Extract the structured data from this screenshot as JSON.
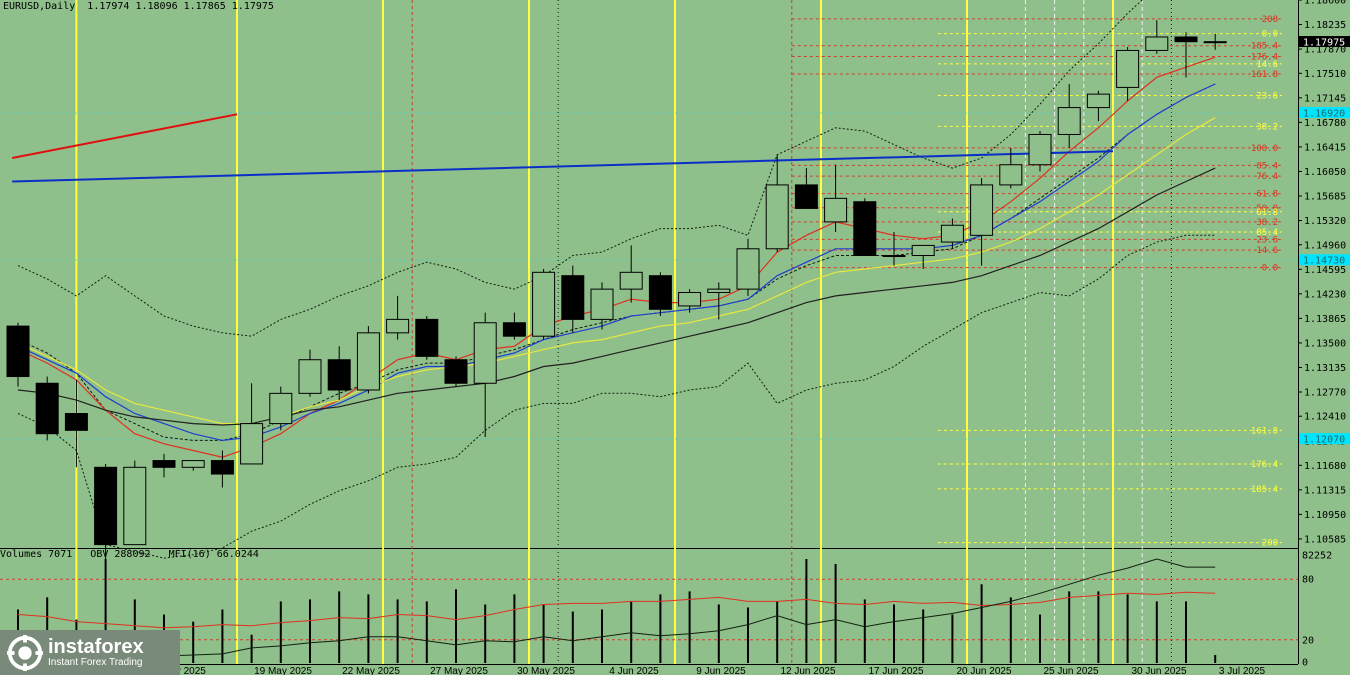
{
  "header": {
    "symbol": "EURUSD,Daily",
    "ohlc": "1.17974 1.18096 1.17865 1.17975"
  },
  "subwindow": {
    "header": "Volumes 7071   OBV 288092   MFI(16) 66.0244",
    "scale_labels": [
      "82252",
      "80",
      "20",
      "0"
    ]
  },
  "logo": {
    "name": "instaforex",
    "tagline": "Instant Forex Trading"
  },
  "colors": {
    "background": "#8fbf8a",
    "bull_candle": "#8fbf8a",
    "bear_candle": "#000000",
    "ma_red": "#e03020",
    "ma_blue": "#1f3fd0",
    "ma_yellow": "#e8e840",
    "ma_black": "#202020",
    "trend_red": "#e01010",
    "trend_blue": "#0a2ec8",
    "highlight": "#00e5ff"
  },
  "chart_data": {
    "type": "candlestick",
    "ylim": [
      1.1045,
      1.186
    ],
    "price_ticks": [
      "1.18600",
      "1.18235",
      "1.17870",
      "1.17510",
      "1.17145",
      "1.16780",
      "1.16415",
      "1.16050",
      "1.15685",
      "1.15320",
      "1.14960",
      "1.14595",
      "1.14230",
      "1.13865",
      "1.13500",
      "1.13135",
      "1.12770",
      "1.12410",
      "1.12045",
      "1.11680",
      "1.11315",
      "1.10950",
      "1.10585"
    ],
    "current_price": "1.17975",
    "cyan_marks": [
      {
        "price": 1.1692,
        "text": "1.16920"
      },
      {
        "price": 1.1473,
        "text": "1.14730"
      },
      {
        "price": 1.1207,
        "text": "1.12070"
      }
    ],
    "dates": [
      "19 May 2025",
      "22 May 2025",
      "27 May 2025",
      "30 May 2025",
      "4 Jun 2025",
      "9 Jun 2025",
      "12 Jun 2025",
      "17 Jun 2025",
      "20 Jun 2025",
      "25 Jun 2025",
      "30 Jun 2025",
      "3 Jul 2025"
    ],
    "partial_dates": [
      "May 2025",
      "14 May 2025"
    ],
    "candles": [
      {
        "o": 1.1375,
        "h": 1.138,
        "l": 1.1285,
        "c": 1.13
      },
      {
        "o": 1.129,
        "h": 1.13,
        "l": 1.1205,
        "c": 1.1215
      },
      {
        "o": 1.1245,
        "h": 1.1295,
        "l": 1.1165,
        "c": 1.122
      },
      {
        "o": 1.1165,
        "h": 1.117,
        "l": 1.101,
        "c": 1.105
      },
      {
        "o": 1.105,
        "h": 1.1175,
        "l": 1.105,
        "c": 1.1165
      },
      {
        "o": 1.1175,
        "h": 1.1185,
        "l": 1.115,
        "c": 1.1165
      },
      {
        "o": 1.1165,
        "h": 1.1175,
        "l": 1.116,
        "c": 1.1175
      },
      {
        "o": 1.1175,
        "h": 1.119,
        "l": 1.1135,
        "c": 1.1155
      },
      {
        "o": 1.117,
        "h": 1.129,
        "l": 1.117,
        "c": 1.123
      },
      {
        "o": 1.123,
        "h": 1.1285,
        "l": 1.122,
        "c": 1.1275
      },
      {
        "o": 1.1275,
        "h": 1.134,
        "l": 1.127,
        "c": 1.1325
      },
      {
        "o": 1.1325,
        "h": 1.1345,
        "l": 1.1265,
        "c": 1.128
      },
      {
        "o": 1.128,
        "h": 1.1375,
        "l": 1.1275,
        "c": 1.1365
      },
      {
        "o": 1.1365,
        "h": 1.142,
        "l": 1.1355,
        "c": 1.1385
      },
      {
        "o": 1.1385,
        "h": 1.139,
        "l": 1.1325,
        "c": 1.133
      },
      {
        "o": 1.1325,
        "h": 1.133,
        "l": 1.1285,
        "c": 1.129
      },
      {
        "o": 1.129,
        "h": 1.1395,
        "l": 1.121,
        "c": 1.138
      },
      {
        "o": 1.138,
        "h": 1.1395,
        "l": 1.1355,
        "c": 1.136
      },
      {
        "o": 1.136,
        "h": 1.146,
        "l": 1.1355,
        "c": 1.1455
      },
      {
        "o": 1.145,
        "h": 1.1465,
        "l": 1.1365,
        "c": 1.1385
      },
      {
        "o": 1.1385,
        "h": 1.144,
        "l": 1.137,
        "c": 1.143
      },
      {
        "o": 1.143,
        "h": 1.1495,
        "l": 1.141,
        "c": 1.1455
      },
      {
        "o": 1.145,
        "h": 1.1455,
        "l": 1.139,
        "c": 1.14
      },
      {
        "o": 1.1405,
        "h": 1.143,
        "l": 1.1395,
        "c": 1.1425
      },
      {
        "o": 1.1425,
        "h": 1.144,
        "l": 1.1385,
        "c": 1.143
      },
      {
        "o": 1.143,
        "h": 1.1505,
        "l": 1.142,
        "c": 1.149
      },
      {
        "o": 1.149,
        "h": 1.163,
        "l": 1.1485,
        "c": 1.1585
      },
      {
        "o": 1.1585,
        "h": 1.161,
        "l": 1.155,
        "c": 1.155
      },
      {
        "o": 1.153,
        "h": 1.1615,
        "l": 1.1515,
        "c": 1.1565
      },
      {
        "o": 1.156,
        "h": 1.1565,
        "l": 1.148,
        "c": 1.148
      },
      {
        "o": 1.148,
        "h": 1.1515,
        "l": 1.1465,
        "c": 1.148
      },
      {
        "o": 1.148,
        "h": 1.1495,
        "l": 1.146,
        "c": 1.1495
      },
      {
        "o": 1.15,
        "h": 1.1535,
        "l": 1.149,
        "c": 1.1525
      },
      {
        "o": 1.151,
        "h": 1.1595,
        "l": 1.1465,
        "c": 1.1585
      },
      {
        "o": 1.1585,
        "h": 1.164,
        "l": 1.158,
        "c": 1.1615
      },
      {
        "o": 1.1615,
        "h": 1.1665,
        "l": 1.1605,
        "c": 1.166
      },
      {
        "o": 1.166,
        "h": 1.1735,
        "l": 1.164,
        "c": 1.17
      },
      {
        "o": 1.17,
        "h": 1.1725,
        "l": 1.168,
        "c": 1.172
      },
      {
        "o": 1.173,
        "h": 1.179,
        "l": 1.171,
        "c": 1.1785
      },
      {
        "o": 1.1785,
        "h": 1.183,
        "l": 1.178,
        "c": 1.1805
      },
      {
        "o": 1.1805,
        "h": 1.1812,
        "l": 1.1745,
        "c": 1.1798
      },
      {
        "o": 1.1797,
        "h": 1.181,
        "l": 1.1786,
        "c": 1.1798
      }
    ],
    "moving_averages": [
      {
        "name": "red",
        "values": [
          1.134,
          1.132,
          1.1295,
          1.125,
          1.1215,
          1.12,
          1.119,
          1.118,
          1.1195,
          1.1215,
          1.1245,
          1.1265,
          1.1295,
          1.1325,
          1.1335,
          1.1325,
          1.134,
          1.1345,
          1.1375,
          1.139,
          1.14,
          1.1415,
          1.141,
          1.141,
          1.1415,
          1.1435,
          1.1485,
          1.151,
          1.153,
          1.152,
          1.151,
          1.1505,
          1.151,
          1.153,
          1.156,
          1.1595,
          1.1635,
          1.167,
          1.171,
          1.1745,
          1.176,
          1.1775
        ]
      },
      {
        "name": "blue",
        "values": [
          1.1345,
          1.1325,
          1.1305,
          1.127,
          1.1245,
          1.123,
          1.1215,
          1.1205,
          1.121,
          1.1225,
          1.1245,
          1.126,
          1.128,
          1.1305,
          1.1315,
          1.1315,
          1.1325,
          1.1335,
          1.1355,
          1.1365,
          1.1375,
          1.139,
          1.1395,
          1.14,
          1.1405,
          1.1415,
          1.145,
          1.147,
          1.149,
          1.149,
          1.149,
          1.149,
          1.1495,
          1.151,
          1.1535,
          1.156,
          1.159,
          1.162,
          1.166,
          1.169,
          1.1715,
          1.1735
        ]
      },
      {
        "name": "yellow",
        "values": [
          1.135,
          1.133,
          1.131,
          1.128,
          1.126,
          1.125,
          1.124,
          1.123,
          1.123,
          1.124,
          1.1255,
          1.1265,
          1.1285,
          1.13,
          1.131,
          1.1315,
          1.132,
          1.133,
          1.134,
          1.135,
          1.1355,
          1.1365,
          1.1375,
          1.138,
          1.139,
          1.14,
          1.142,
          1.144,
          1.1455,
          1.146,
          1.1465,
          1.147,
          1.1475,
          1.1485,
          1.15,
          1.152,
          1.1545,
          1.157,
          1.16,
          1.163,
          1.166,
          1.1685
        ]
      },
      {
        "name": "black",
        "values": [
          1.128,
          1.1275,
          1.1265,
          1.125,
          1.124,
          1.1235,
          1.123,
          1.1228,
          1.123,
          1.124,
          1.125,
          1.1255,
          1.1265,
          1.1275,
          1.128,
          1.1285,
          1.129,
          1.13,
          1.1315,
          1.132,
          1.133,
          1.134,
          1.135,
          1.136,
          1.137,
          1.138,
          1.1395,
          1.141,
          1.142,
          1.1425,
          1.143,
          1.1435,
          1.144,
          1.145,
          1.1465,
          1.148,
          1.15,
          1.152,
          1.1545,
          1.157,
          1.159,
          1.161
        ]
      }
    ],
    "bollinger_upper": [
      1.1465,
      1.1445,
      1.142,
      1.145,
      1.142,
      1.139,
      1.1375,
      1.1365,
      1.136,
      1.1385,
      1.14,
      1.142,
      1.1435,
      1.1455,
      1.147,
      1.146,
      1.144,
      1.143,
      1.145,
      1.148,
      1.1485,
      1.1505,
      1.152,
      1.152,
      1.1525,
      1.151,
      1.163,
      1.165,
      1.167,
      1.1665,
      1.1645,
      1.1625,
      1.161,
      1.1625,
      1.166,
      1.1705,
      1.1755,
      1.1795,
      1.184,
      1.188,
      1.192,
      1.196
    ],
    "bollinger_mid": [
      1.1355,
      1.1335,
      1.1305,
      1.125,
      1.123,
      1.121,
      1.1205,
      1.1205,
      1.1215,
      1.1235,
      1.1255,
      1.1275,
      1.129,
      1.131,
      1.132,
      1.132,
      1.133,
      1.134,
      1.1355,
      1.137,
      1.138,
      1.139,
      1.1395,
      1.14,
      1.1405,
      1.1415,
      1.1445,
      1.1465,
      1.148,
      1.148,
      1.148,
      1.1485,
      1.149,
      1.151,
      1.1535,
      1.1565,
      1.1595,
      1.1625,
      1.166,
      1.169,
      1.1715,
      1.1735
    ],
    "bollinger_lower": [
      1.1245,
      1.1225,
      1.119,
      1.105,
      1.104,
      1.103,
      1.1035,
      1.1045,
      1.107,
      1.1085,
      1.111,
      1.113,
      1.1145,
      1.1165,
      1.117,
      1.118,
      1.122,
      1.125,
      1.126,
      1.126,
      1.1275,
      1.1275,
      1.127,
      1.128,
      1.1285,
      1.132,
      1.126,
      1.128,
      1.129,
      1.1295,
      1.1315,
      1.1345,
      1.137,
      1.1395,
      1.141,
      1.1425,
      1.142,
      1.1445,
      1.148,
      1.15,
      1.151,
      1.151
    ],
    "vertical_lines": [
      {
        "bar": 2.0,
        "style": "yellow"
      },
      {
        "bar": 7.5,
        "style": "yellow"
      },
      {
        "bar": 12.5,
        "style": "yellow"
      },
      {
        "bar": 13.5,
        "style": "red-dashed"
      },
      {
        "bar": 17.5,
        "style": "yellow"
      },
      {
        "bar": 18.5,
        "style": "black-dotted"
      },
      {
        "bar": 22.5,
        "style": "yellow"
      },
      {
        "bar": 26.5,
        "style": "red-dashed"
      },
      {
        "bar": 27.5,
        "style": "yellow"
      },
      {
        "bar": 32.5,
        "style": "yellow"
      },
      {
        "bar": 34.5,
        "style": "white-dashed"
      },
      {
        "bar": 35.5,
        "style": "white-dashed"
      },
      {
        "bar": 36.5,
        "style": "white-dashed"
      },
      {
        "bar": 37.5,
        "style": "yellow"
      },
      {
        "bar": 38.5,
        "style": "white-dashed"
      },
      {
        "bar": 39.5,
        "style": "black-dotted"
      }
    ],
    "fib_levels_red": [
      {
        "label": "208",
        "price": 1.1832
      },
      {
        "label": "185.4",
        "price": 1.1792
      },
      {
        "label": "176.4",
        "price": 1.1776
      },
      {
        "label": "161.8",
        "price": 1.175
      },
      {
        "label": "100.0",
        "price": 1.164
      },
      {
        "label": "85.4",
        "price": 1.1614
      },
      {
        "label": "76.4",
        "price": 1.1598
      },
      {
        "label": "61.8",
        "price": 1.1572
      },
      {
        "label": "50.0",
        "price": 1.1551
      },
      {
        "label": "38.2",
        "price": 1.153
      },
      {
        "label": "23.6",
        "price": 1.1504
      },
      {
        "label": "14.6",
        "price": 1.1488
      },
      {
        "label": "0.0",
        "price": 1.1462
      }
    ],
    "fib_levels_yellow": [
      {
        "label": "0.0",
        "price": 1.181
      },
      {
        "label": "14.6",
        "price": 1.1765
      },
      {
        "label": "23.6",
        "price": 1.1718
      },
      {
        "label": "38.2",
        "price": 1.1672
      },
      {
        "label": "61.8",
        "price": 1.1545
      },
      {
        "label": "85.4",
        "price": 1.1515
      },
      {
        "label": "161.8",
        "price": 1.122
      },
      {
        "label": "176.4",
        "price": 1.117
      },
      {
        "label": "185.4",
        "price": 1.1133
      },
      {
        "label": "200",
        "price": 1.1053
      }
    ],
    "trendlines": [
      {
        "color": "red",
        "from": {
          "bar": -0.2,
          "price": 1.1625
        },
        "to": {
          "bar": 7.5,
          "price": 1.169
        }
      },
      {
        "color": "blue",
        "from": {
          "bar": -0.2,
          "price": 1.159
        },
        "to": {
          "bar": 37.5,
          "price": 1.1635
        }
      }
    ],
    "volumes": [
      50,
      62,
      40,
      100,
      60,
      45,
      38,
      50,
      25,
      58,
      60,
      68,
      65,
      60,
      58,
      70,
      55,
      65,
      55,
      48,
      50,
      58,
      65,
      68,
      55,
      52,
      58,
      100,
      95,
      60,
      55,
      50,
      45,
      75,
      62,
      45,
      68,
      68,
      65,
      58,
      58,
      5
    ],
    "obv": [
      10,
      8,
      6,
      2,
      3,
      4,
      5,
      6,
      12,
      14,
      17,
      19,
      23,
      23,
      19,
      15,
      19,
      18,
      23,
      19,
      23,
      27,
      24,
      26,
      29,
      35,
      44,
      35,
      40,
      33,
      38,
      42,
      46,
      52,
      58,
      66,
      75,
      84,
      91,
      100,
      92,
      92
    ],
    "mfi": [
      45,
      43,
      38,
      36,
      34,
      32,
      33,
      35,
      34,
      37,
      39,
      42,
      41,
      45,
      44,
      40,
      44,
      50,
      55,
      56,
      56,
      58,
      58,
      60,
      62,
      58,
      58,
      60,
      56,
      55,
      58,
      56,
      57,
      54,
      55,
      57,
      62,
      64,
      66,
      65,
      67,
      66
    ]
  }
}
